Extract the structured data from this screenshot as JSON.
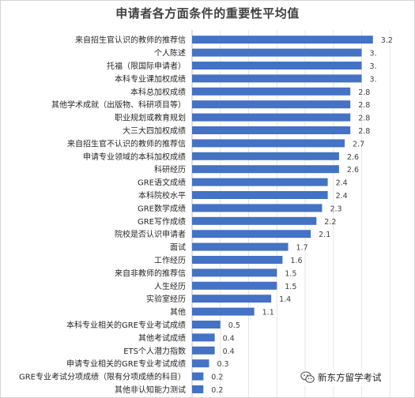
{
  "chart_data": {
    "type": "bar",
    "orientation": "horizontal",
    "title": "申请者各方面条件的重要性平均值",
    "categories": [
      "来自招生官认识的教师的推荐信",
      "个人陈述",
      "托福（限国际申请者）",
      "本科专业课加权成绩",
      "本科总加权成绩",
      "其他学术成就（出版物、科研项目等）",
      "职业规划或教育规划",
      "大三大四加权成绩",
      "来自招生官不认识的教师的推荐信",
      "申请专业领域的本科加权成绩",
      "科研经历",
      "GRE语文成绩",
      "本科院校水平",
      "GRE数学成绩",
      "GRE写作成绩",
      "院校是否认识申请者",
      "面试",
      "工作经历",
      "来自非教师的推荐信",
      "人生经历",
      "实验室经历",
      "其他",
      "本科专业相关的GRE专业考试成绩",
      "其他考试成绩",
      "ETS个人潜力指数",
      "申请专业相关的GRE专业考试成绩",
      "GRE专业考试分项成绩（限有分项成绩的科目）",
      "其他非认知能力测试"
    ],
    "values": [
      3.2,
      3.0,
      3.0,
      3.0,
      2.8,
      2.8,
      2.8,
      2.8,
      2.7,
      2.6,
      2.6,
      2.4,
      2.4,
      2.3,
      2.2,
      2.1,
      1.7,
      1.6,
      1.5,
      1.5,
      1.4,
      1.1,
      0.5,
      0.4,
      0.4,
      0.3,
      0.2,
      0.2
    ],
    "data_labels": [
      "3.2",
      "3.",
      "3.",
      "3.",
      "2.8",
      "2.8",
      "2.8",
      "2.8",
      "2.7",
      "2.6",
      "2.6",
      "2.4",
      "2.4",
      "2.3",
      "2.2",
      "2.1",
      "1.7",
      "1.6",
      "1.5",
      "1.5",
      "1.4",
      "1.1",
      "0.5",
      "0.4",
      "0.4",
      "0.3",
      "0.2",
      "0.2"
    ],
    "xlim": [
      0,
      3.5
    ],
    "grid": true,
    "legend": "none",
    "bar_color": "#4472C4"
  },
  "watermark": {
    "text": "新东方留学考试",
    "icon": "wechat-icon"
  }
}
